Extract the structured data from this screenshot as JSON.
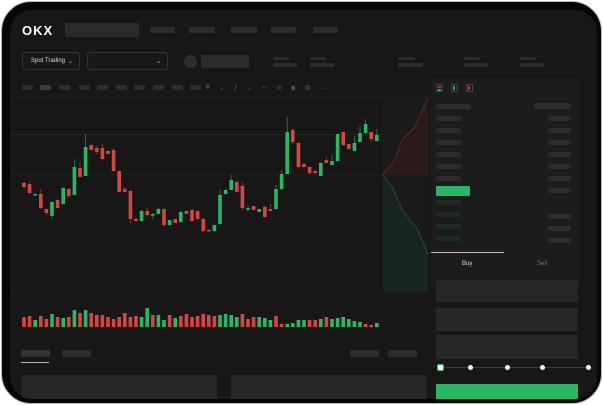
{
  "header": {
    "logo": "OKX",
    "nav_item_count": 5
  },
  "toolbar": {
    "market_selector": "Spot Trading"
  },
  "order_form": {
    "tabs": [
      "Buy",
      "Sell"
    ],
    "active_tab": "Buy",
    "slider_level": 0
  },
  "colors": {
    "up": "#26b865",
    "down": "#d9443f",
    "background": "#171717",
    "panel": "#1c1c1c"
  },
  "chart_data": {
    "type": "candlestick",
    "candles": [
      [
        119,
        120,
        114,
        115
      ],
      [
        118,
        119,
        108,
        109
      ],
      [
        107,
        108,
        107,
        108
      ],
      [
        108,
        113,
        93,
        94
      ],
      [
        93,
        93,
        87,
        89
      ],
      [
        86,
        101,
        83,
        100
      ],
      [
        102,
        103,
        93,
        94
      ],
      [
        98,
        115,
        97,
        114
      ],
      [
        113,
        114,
        104,
        106
      ],
      [
        107,
        143,
        107,
        135
      ],
      [
        134,
        140,
        125,
        125
      ],
      [
        126,
        168,
        126,
        155
      ],
      [
        157,
        158,
        152,
        152
      ],
      [
        154,
        156,
        148,
        150
      ],
      [
        154,
        158,
        142,
        143
      ],
      [
        151,
        152,
        148,
        148
      ],
      [
        152,
        154,
        131,
        131
      ],
      [
        131,
        132,
        110,
        110
      ],
      [
        113,
        115,
        109,
        110
      ],
      [
        111,
        112,
        78,
        83
      ],
      [
        83,
        84,
        81,
        81
      ],
      [
        81,
        92,
        80,
        91
      ],
      [
        91,
        94,
        85,
        87
      ],
      [
        87,
        89,
        83,
        88
      ],
      [
        88,
        94,
        88,
        93
      ],
      [
        93,
        94,
        75,
        77
      ],
      [
        77,
        82,
        76,
        82
      ],
      [
        83,
        83,
        79,
        79
      ],
      [
        80,
        91,
        79,
        90
      ],
      [
        91,
        91,
        88,
        88
      ],
      [
        92,
        93,
        80,
        81
      ],
      [
        91,
        92,
        82,
        83
      ],
      [
        83,
        84,
        70,
        71
      ],
      [
        72,
        73,
        71,
        71
      ],
      [
        71,
        77,
        70,
        77
      ],
      [
        78,
        112,
        77,
        107
      ],
      [
        108,
        113,
        108,
        112
      ],
      [
        112,
        127,
        112,
        122
      ],
      [
        120,
        121,
        110,
        110
      ],
      [
        116,
        120,
        92,
        94
      ],
      [
        93,
        96,
        90,
        94
      ],
      [
        96,
        96,
        92,
        92
      ],
      [
        90,
        93,
        90,
        93
      ],
      [
        95,
        96,
        85,
        85
      ],
      [
        93,
        98,
        91,
        91
      ],
      [
        93,
        117,
        92,
        113
      ],
      [
        113,
        132,
        112,
        128
      ],
      [
        128,
        185,
        128,
        170
      ],
      [
        172,
        174,
        158,
        160
      ],
      [
        159,
        160,
        133,
        135
      ],
      [
        138,
        139,
        135,
        135
      ],
      [
        135,
        135,
        128,
        129
      ],
      [
        131,
        132,
        129,
        129
      ],
      [
        126,
        140,
        126,
        139
      ],
      [
        142,
        145,
        139,
        139
      ],
      [
        137,
        147,
        137,
        141
      ],
      [
        141,
        168,
        141,
        168
      ],
      [
        170,
        170,
        156,
        157
      ],
      [
        158,
        158,
        153,
        153
      ],
      [
        151,
        166,
        151,
        159
      ],
      [
        160,
        176,
        160,
        169
      ],
      [
        169,
        183,
        169,
        178
      ],
      [
        170,
        170,
        160,
        163
      ],
      [
        161,
        173,
        161,
        167
      ]
    ],
    "volumes": [
      10,
      11,
      7,
      11,
      8,
      13,
      10,
      9,
      10,
      17,
      14,
      17,
      14,
      12,
      12,
      10,
      8,
      10,
      14,
      10,
      11,
      10,
      19,
      12,
      12,
      7,
      12,
      9,
      11,
      13,
      10,
      11,
      13,
      12,
      11,
      12,
      13,
      12,
      10,
      13,
      8,
      10,
      10,
      9,
      7,
      11,
      3,
      3,
      4,
      7,
      7,
      7,
      7,
      8,
      10,
      8,
      9,
      10,
      8,
      6,
      5,
      3,
      2,
      4
    ],
    "volume_up": [
      0,
      0,
      1,
      0,
      0,
      1,
      0,
      1,
      0,
      1,
      0,
      1,
      0,
      0,
      0,
      0,
      0,
      0,
      0,
      0,
      0,
      1,
      1,
      0,
      1,
      1,
      0,
      1,
      0,
      0,
      0,
      0,
      0,
      0,
      0,
      1,
      1,
      1,
      1,
      0,
      0,
      0,
      1,
      1,
      1,
      0,
      0,
      1,
      1,
      1,
      1,
      0,
      0,
      1,
      0,
      1,
      1,
      1,
      1,
      1,
      1,
      0,
      0,
      1
    ]
  }
}
